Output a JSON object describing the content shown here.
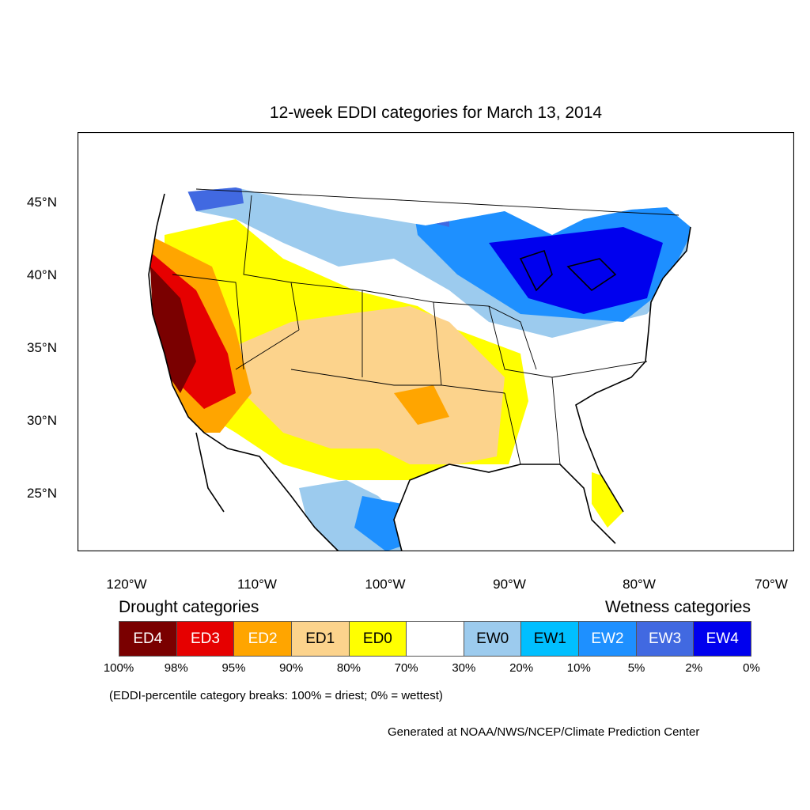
{
  "title": "12-week EDDI categories for March 13, 2014",
  "lat_labels": [
    "45°N",
    "40°N",
    "35°N",
    "30°N",
    "25°N"
  ],
  "lon_labels": [
    "120°W",
    "110°W",
    "100°W",
    "90°W",
    "80°W",
    "70°W"
  ],
  "drought_heading": "Drought categories",
  "wetness_heading": "Wetness categories",
  "legend": [
    {
      "label": "ED4",
      "color": "#7a0000",
      "text_color": "#ffffff"
    },
    {
      "label": "ED3",
      "color": "#e60000",
      "text_color": "#ffffff"
    },
    {
      "label": "ED2",
      "color": "#ffa500",
      "text_color": "#ffffff"
    },
    {
      "label": "ED1",
      "color": "#fcd38c",
      "text_color": "#000000"
    },
    {
      "label": "ED0",
      "color": "#ffff00",
      "text_color": "#000000"
    },
    {
      "label": "",
      "color": "#ffffff",
      "text_color": "#000000"
    },
    {
      "label": "EW0",
      "color": "#9ccbee",
      "text_color": "#000000"
    },
    {
      "label": "EW1",
      "color": "#00bfff",
      "text_color": "#000000"
    },
    {
      "label": "EW2",
      "color": "#1e90ff",
      "text_color": "#ffffff"
    },
    {
      "label": "EW3",
      "color": "#4169e1",
      "text_color": "#ffffff"
    },
    {
      "label": "EW4",
      "color": "#0000ee",
      "text_color": "#ffffff"
    }
  ],
  "percent_labels": [
    "100%",
    "98%",
    "95%",
    "90%",
    "80%",
    "70%",
    "30%",
    "20%",
    "10%",
    "5%",
    "2%",
    "0%"
  ],
  "note": "(EDDI-percentile category breaks: 100% = driest; 0% = wettest)",
  "credit": "Generated at NOAA/NWS/NCEP/Climate Prediction Center"
}
